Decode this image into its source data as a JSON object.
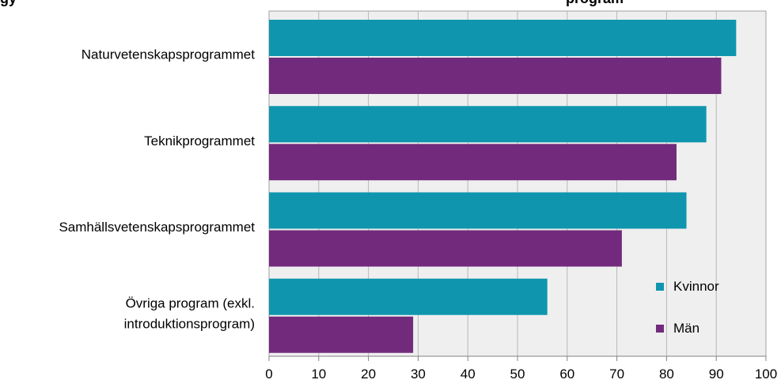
{
  "chart_data": {
    "type": "bar",
    "orientation": "horizontal",
    "title_fragments": [
      "gy",
      "program"
    ],
    "categories": [
      [
        "Naturvetenskapsprogrammet"
      ],
      [
        "Teknikprogrammet"
      ],
      [
        "Samhällsvetenskapsprogrammet"
      ],
      [
        "Övriga program (exkl.",
        "introduktionsprogram)"
      ]
    ],
    "series": [
      {
        "name": "Kvinnor",
        "color": "#0f96ae",
        "values": [
          94,
          88,
          84,
          56
        ]
      },
      {
        "name": "Män",
        "color": "#722b7c",
        "values": [
          91,
          82,
          71,
          29
        ]
      }
    ],
    "xlim": [
      0,
      100
    ],
    "xticks": [
      "0",
      "10",
      "20",
      "30",
      "40",
      "50",
      "60",
      "70",
      "80",
      "90",
      "100"
    ],
    "grid": "vertical",
    "legend_position": "bottom-right",
    "plot_background": "#efefef",
    "grid_color": "#b8b8b8"
  }
}
